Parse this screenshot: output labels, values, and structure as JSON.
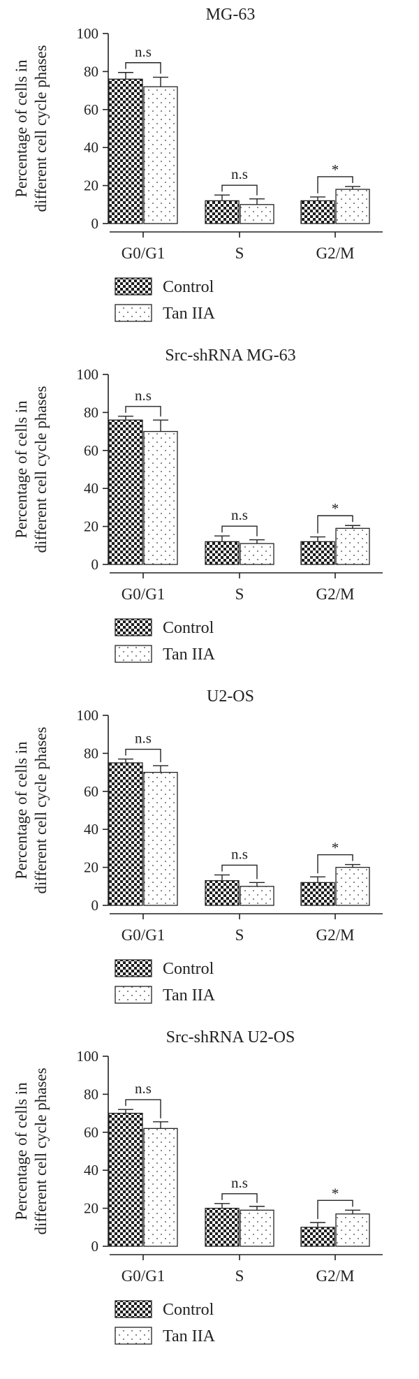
{
  "y_axis_label_lines": [
    "Percentage of cells in",
    "different cell cycle phases"
  ],
  "legend": [
    {
      "label": "Control",
      "pattern": "checker"
    },
    {
      "label": "Tan IIA",
      "pattern": "dots"
    }
  ],
  "colors": {
    "ink": "#222222",
    "background": "#ffffff"
  },
  "chart_data": [
    {
      "type": "bar",
      "title": "MG-63",
      "categories": [
        "G0/G1",
        "S",
        "G2/M"
      ],
      "ylim": [
        0,
        100
      ],
      "yticks": [
        "0",
        "20",
        "40",
        "60",
        "80",
        "100"
      ],
      "series": [
        {
          "name": "Control",
          "values": [
            76,
            12,
            12
          ],
          "errors": [
            3.5,
            3,
            2
          ]
        },
        {
          "name": "Tan IIA",
          "values": [
            72,
            10,
            18
          ],
          "errors": [
            5,
            3,
            1.5
          ]
        }
      ],
      "significance": [
        "n.s",
        "n.s",
        "*"
      ]
    },
    {
      "type": "bar",
      "title": "Src-shRNA MG-63",
      "categories": [
        "G0/G1",
        "S",
        "G2/M"
      ],
      "ylim": [
        0,
        100
      ],
      "yticks": [
        "0",
        "20",
        "40",
        "60",
        "80",
        "100"
      ],
      "series": [
        {
          "name": "Control",
          "values": [
            76,
            12,
            12
          ],
          "errors": [
            2,
            3,
            2.5
          ]
        },
        {
          "name": "Tan IIA",
          "values": [
            70,
            11,
            19
          ],
          "errors": [
            6,
            2,
            1.5
          ]
        }
      ],
      "significance": [
        "n.s",
        "n.s",
        "*"
      ]
    },
    {
      "type": "bar",
      "title": "U2-OS",
      "categories": [
        "G0/G1",
        "S",
        "G2/M"
      ],
      "ylim": [
        0,
        100
      ],
      "yticks": [
        "0",
        "20",
        "40",
        "60",
        "80",
        "100"
      ],
      "series": [
        {
          "name": "Control",
          "values": [
            75,
            13,
            12
          ],
          "errors": [
            2,
            3,
            3
          ]
        },
        {
          "name": "Tan IIA",
          "values": [
            70,
            10,
            20
          ],
          "errors": [
            3.5,
            2,
            1.5
          ]
        }
      ],
      "significance": [
        "n.s",
        "n.s",
        "*"
      ]
    },
    {
      "type": "bar",
      "title": "Src-shRNA U2-OS",
      "categories": [
        "G0/G1",
        "S",
        "G2/M"
      ],
      "ylim": [
        0,
        100
      ],
      "yticks": [
        "0",
        "20",
        "40",
        "60",
        "80",
        "100"
      ],
      "series": [
        {
          "name": "Control",
          "values": [
            70,
            20,
            10
          ],
          "errors": [
            2,
            2.5,
            2.5
          ]
        },
        {
          "name": "Tan IIA",
          "values": [
            62,
            19,
            17
          ],
          "errors": [
            3.5,
            2,
            2
          ]
        }
      ],
      "significance": [
        "n.s",
        "n.s",
        "*"
      ]
    }
  ]
}
